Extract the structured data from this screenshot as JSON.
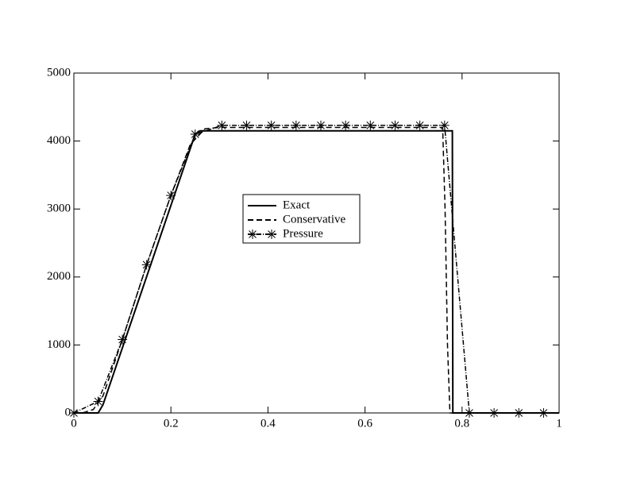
{
  "chart_data": {
    "type": "line",
    "xlim": [
      0,
      1
    ],
    "xticks": [
      0,
      0.2,
      0.4,
      0.6,
      0.8,
      1
    ],
    "ylim": [
      0,
      5000
    ],
    "yticks": [
      0,
      1000,
      2000,
      3000,
      4000,
      5000
    ],
    "series": [
      {
        "name": "Exact",
        "color": "#000000",
        "style": "solid",
        "marker": false,
        "x": [
          0,
          0.05,
          0.06,
          0.25,
          0.26,
          0.78,
          0.781,
          1
        ],
        "values": [
          0,
          0,
          120,
          4100,
          4150,
          4150,
          0,
          0
        ]
      },
      {
        "name": "Conservative",
        "color": "#000000",
        "style": "dashed",
        "marker": false,
        "x": [
          0,
          0.02,
          0.04,
          0.06,
          0.1,
          0.15,
          0.2,
          0.24,
          0.27,
          0.3,
          0.5,
          0.76,
          0.765,
          0.77,
          0.775,
          1
        ],
        "values": [
          0,
          5,
          50,
          250,
          1080,
          2180,
          3200,
          3950,
          4180,
          4200,
          4200,
          4200,
          3000,
          1000,
          0,
          0
        ]
      },
      {
        "name": "Pressure",
        "color": "#000000",
        "style": "dashdot",
        "marker": true,
        "x": [
          0,
          0.05,
          0.1,
          0.15,
          0.2,
          0.25,
          0.305,
          0.356,
          0.407,
          0.458,
          0.509,
          0.56,
          0.611,
          0.662,
          0.713,
          0.764,
          0.815,
          0.866,
          0.917,
          0.968
        ],
        "values": [
          0,
          170,
          1080,
          2180,
          3200,
          4100,
          4230,
          4230,
          4230,
          4230,
          4230,
          4230,
          4230,
          4230,
          4230,
          4230,
          0,
          0,
          0,
          0
        ]
      }
    ]
  }
}
